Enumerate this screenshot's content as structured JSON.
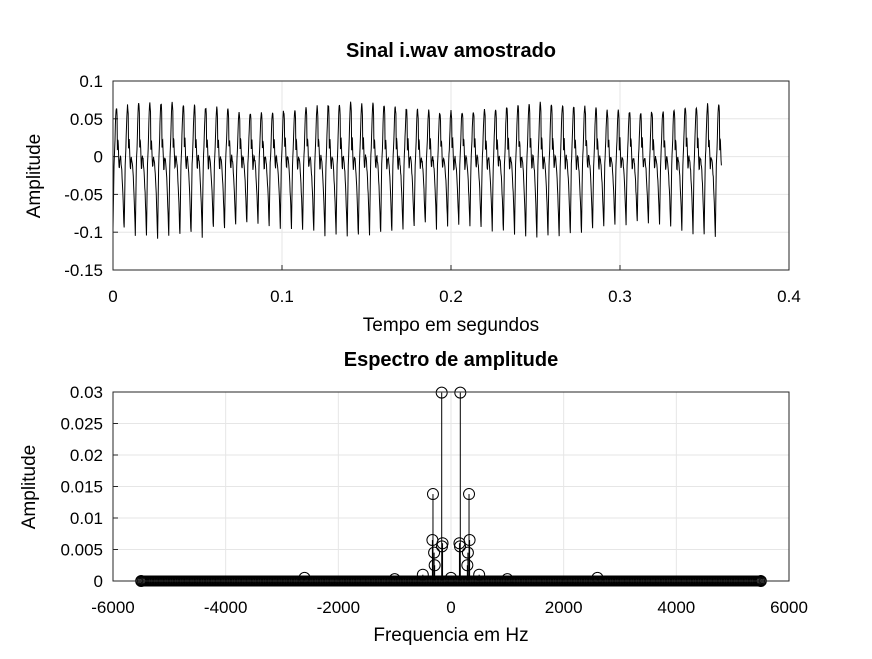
{
  "chart_data": [
    {
      "type": "line",
      "title": "Sinal i.wav amostrado",
      "xlabel": "Tempo em segundos",
      "ylabel": "Amplitude",
      "xlim": [
        0,
        0.4
      ],
      "ylim": [
        -0.15,
        0.1
      ],
      "xticks": [
        "0",
        "0.1",
        "0.2",
        "0.3",
        "0.4"
      ],
      "yticks": [
        "0.1",
        "0.05",
        "0",
        "-0.05",
        "-0.1",
        "-0.15"
      ],
      "grid": true,
      "series": [
        {
          "color": "#000000",
          "signal": {
            "t_start": 0.0,
            "t_end": 0.36,
            "period": 0.0066,
            "peak_max": 0.085,
            "peak_min": -0.105,
            "secondary_peak": 0.02
          }
        }
      ]
    },
    {
      "type": "stem",
      "title": "Espectro de amplitude",
      "xlabel": "Frequencia em Hz",
      "ylabel": "Amplitude",
      "xlim": [
        -6000,
        6000
      ],
      "ylim": [
        0,
        0.03
      ],
      "xticks": [
        "-6000",
        "-4000",
        "-2000",
        "0",
        "2000",
        "4000",
        "6000"
      ],
      "yticks": [
        "0.03",
        "0.025",
        "0.02",
        "0.015",
        "0.01",
        "0.005",
        "0"
      ],
      "grid": true,
      "series": [
        {
          "color": "#000000",
          "marker": "circle",
          "x": [
            -5500,
            -2600,
            -1000,
            -500,
            -330,
            -320,
            -300,
            -290,
            -165,
            -160,
            -150,
            0,
            150,
            160,
            165,
            290,
            300,
            320,
            330,
            500,
            1000,
            2600,
            5500
          ],
          "y": [
            0,
            0.0005,
            0.0003,
            0.001,
            0.0065,
            0.0138,
            0.0045,
            0.0025,
            0.0299,
            0.0055,
            0.006,
            0.0005,
            0.006,
            0.0055,
            0.0299,
            0.0025,
            0.0045,
            0.0138,
            0.0065,
            0.001,
            0.0003,
            0.0005,
            0
          ]
        }
      ]
    }
  ]
}
